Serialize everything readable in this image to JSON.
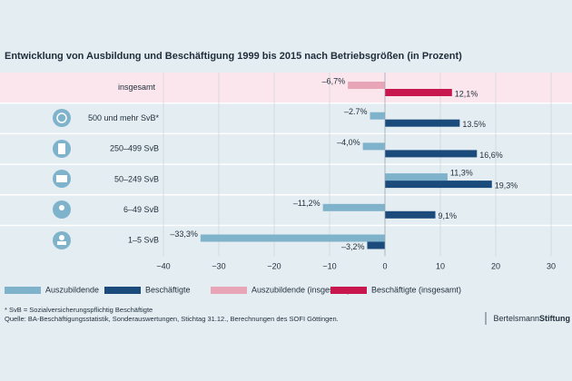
{
  "chart_data": {
    "type": "bar",
    "orientation": "horizontal",
    "title": "Entwicklung von Ausbildung und Beschäftigung 1999 bis 2015 nach Betriebsgrößen (in Prozent)",
    "categories": [
      "insgesamt",
      "500 und mehr SvB*",
      "250–499 SvB",
      "50–249 SvB",
      "6–49 SvB",
      "1–5 SvB"
    ],
    "series": [
      {
        "name": "Auszubildende",
        "color": "#7fb3cc",
        "values": [
          null,
          -2.7,
          -4.0,
          11.3,
          -11.2,
          -33.3
        ],
        "value_labels": [
          null,
          "–2.7%",
          "–4,0%",
          "11,3%",
          "–11,2%",
          "–33,3%"
        ]
      },
      {
        "name": "Beschäftigte",
        "color": "#1b4b7a",
        "values": [
          null,
          13.5,
          16.6,
          19.3,
          9.1,
          -3.2
        ],
        "value_labels": [
          null,
          "13.5%",
          "16,6%",
          "19,3%",
          "9,1%",
          "–3,2%"
        ]
      },
      {
        "name": "Auszubildende (insgesamt)",
        "color": "#e8a5b7",
        "values": [
          -6.7,
          null,
          null,
          null,
          null,
          null
        ],
        "value_labels": [
          "–6,7%",
          null,
          null,
          null,
          null,
          null
        ]
      },
      {
        "name": "Beschäftigte (insgesamt)",
        "color": "#c8174f",
        "values": [
          12.1,
          null,
          null,
          null,
          null,
          null
        ],
        "value_labels": [
          "12,1%",
          null,
          null,
          null,
          null,
          null
        ]
      }
    ],
    "xlim": [
      -40,
      30
    ],
    "xticks": [
      {
        "value": -40,
        "label": "−40"
      },
      {
        "value": -30,
        "label": "−30"
      },
      {
        "value": -20,
        "label": "−20"
      },
      {
        "value": -10,
        "label": "−10"
      },
      0,
      10,
      20,
      30
    ],
    "grid": true,
    "footnote": "* SvB = Sozialversicherungspflichtig Beschäftigte",
    "source": "Quelle: BA-Beschäftigungsstatistik, Sonderauswertungen, Stichtag 31.12., Berechnungen des SOFI Göttingen.",
    "brand": [
      "Bertelsmann",
      "Stiftung"
    ]
  }
}
